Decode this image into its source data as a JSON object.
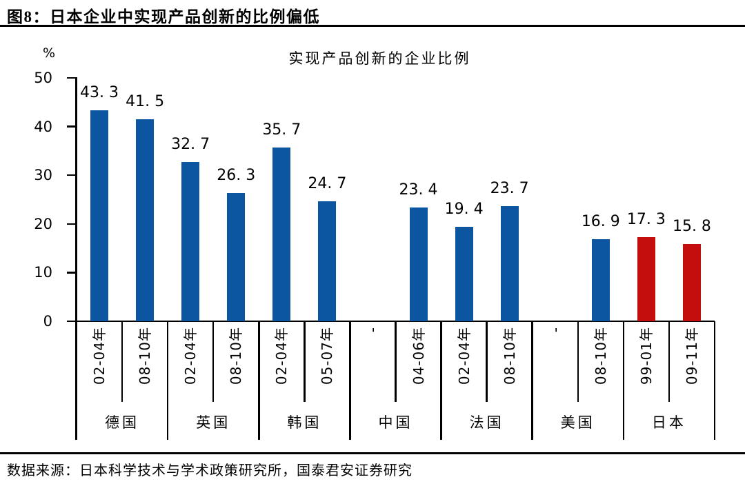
{
  "header": {
    "title": "图8：日本企业中实现产品创新的比例偏低"
  },
  "footer": {
    "source": "数据来源：日本科学技术与学术政策研究所，国泰君安证券研究"
  },
  "chart_data": {
    "type": "bar",
    "title": "实现产品创新的企业比例",
    "xlabel": "",
    "ylabel": "%",
    "ylim": [
      0,
      50
    ],
    "y_ticks": [
      50,
      40,
      30,
      20,
      10,
      0
    ],
    "grid": false,
    "legend": false,
    "colors": {
      "default_bar": "#0B55A1",
      "highlight_bar": "#C40E0E",
      "axis": "#000000"
    },
    "groups": [
      {
        "country": "德国",
        "bars": [
          {
            "period": "02-04年",
            "value": 43.3,
            "label": "43. 3",
            "highlight": false
          },
          {
            "period": "08-10年",
            "value": 41.5,
            "label": "41. 5",
            "highlight": false
          }
        ]
      },
      {
        "country": "英国",
        "bars": [
          {
            "period": "02-04年",
            "value": 32.7,
            "label": "32. 7",
            "highlight": false
          },
          {
            "period": "08-10年",
            "value": 26.3,
            "label": "26. 3",
            "highlight": false
          }
        ]
      },
      {
        "country": "韩国",
        "bars": [
          {
            "period": "02-04年",
            "value": 35.7,
            "label": "35. 7",
            "highlight": false
          },
          {
            "period": "05-07年",
            "value": 24.7,
            "label": "24. 7",
            "highlight": false
          }
        ]
      },
      {
        "country": "中国",
        "bars": [
          {
            "period": "-",
            "value": null,
            "label": "",
            "highlight": false
          },
          {
            "period": "04-06年",
            "value": 23.4,
            "label": "23. 4",
            "highlight": false
          }
        ]
      },
      {
        "country": "法国",
        "bars": [
          {
            "period": "02-04年",
            "value": 19.4,
            "label": "19. 4",
            "highlight": false
          },
          {
            "period": "08-10年",
            "value": 23.7,
            "label": "23. 7",
            "highlight": false
          }
        ]
      },
      {
        "country": "美国",
        "bars": [
          {
            "period": "-",
            "value": null,
            "label": "",
            "highlight": false
          },
          {
            "period": "08-10年",
            "value": 16.9,
            "label": "16. 9",
            "highlight": false
          }
        ]
      },
      {
        "country": "日本",
        "bars": [
          {
            "period": "99-01年",
            "value": 17.3,
            "label": "17. 3",
            "highlight": true
          },
          {
            "period": "09-11年",
            "value": 15.8,
            "label": "15. 8",
            "highlight": true
          }
        ]
      }
    ]
  }
}
